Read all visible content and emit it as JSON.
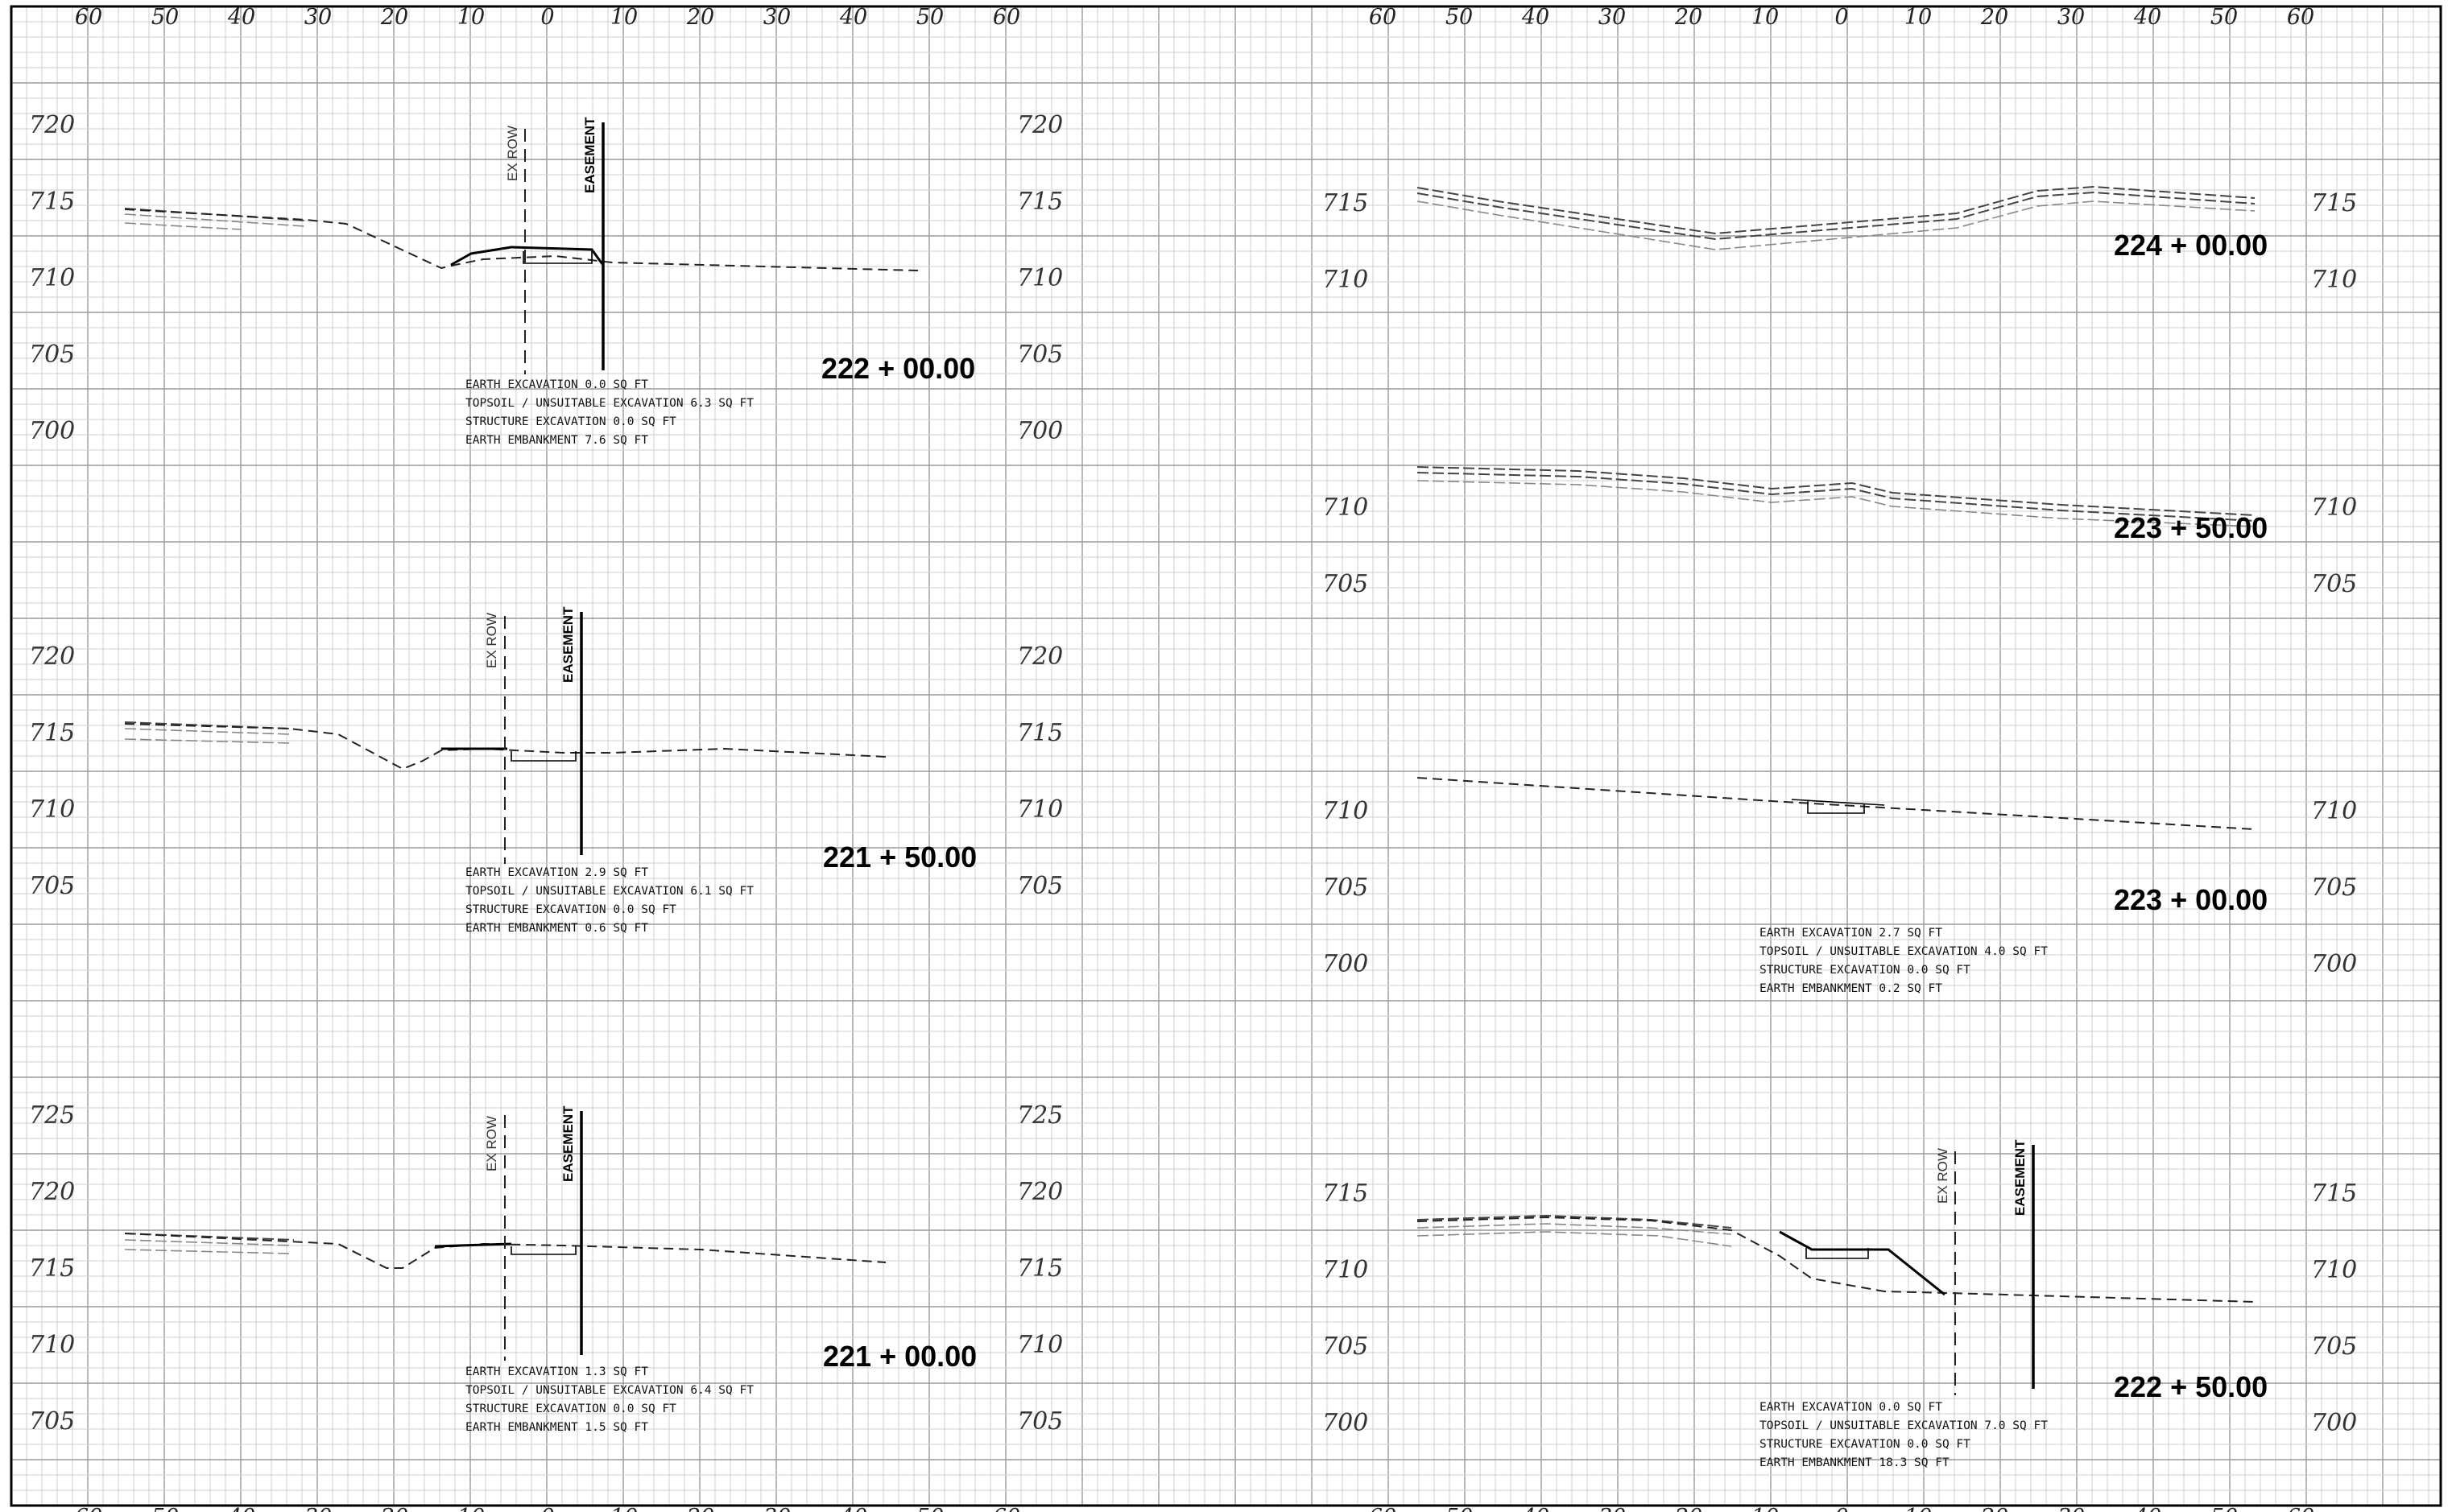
{
  "offset_scale": {
    "left_labels": [
      "60",
      "50",
      "40",
      "30",
      "20",
      "10",
      "0",
      "10",
      "20",
      "30",
      "40",
      "50",
      "60"
    ],
    "right_labels": [
      "60",
      "50",
      "40",
      "30",
      "20",
      "10",
      "0",
      "10",
      "20",
      "30",
      "40",
      "50",
      "60"
    ]
  },
  "vertical_labels": {
    "ex_row": "EX ROW",
    "easement": "EASEMENT"
  },
  "sections": [
    {
      "id": "s222-00",
      "station": "222 + 00.00",
      "elev_left": [
        "720",
        "715",
        "710",
        "705",
        "700"
      ],
      "elev_right": [
        "720",
        "715",
        "710",
        "705",
        "700"
      ],
      "quantities": [
        "EARTH EXCAVATION 0.0 SQ FT",
        "TOPSOIL / UNSUITABLE EXCAVATION 6.3 SQ FT",
        "STRUCTURE EXCAVATION 0.0 SQ FT",
        "EARTH EMBANKMENT 7.6 SQ FT"
      ]
    },
    {
      "id": "s221-50",
      "station": "221 + 50.00",
      "elev_left": [
        "720",
        "715",
        "710",
        "705"
      ],
      "elev_right": [
        "720",
        "715",
        "710",
        "705"
      ],
      "quantities": [
        "EARTH EXCAVATION 2.9 SQ FT",
        "TOPSOIL / UNSUITABLE EXCAVATION 6.1 SQ FT",
        "STRUCTURE EXCAVATION 0.0 SQ FT",
        "EARTH EMBANKMENT 0.6 SQ FT"
      ]
    },
    {
      "id": "s221-00",
      "station": "221 + 00.00",
      "elev_left": [
        "725",
        "720",
        "715",
        "710",
        "705"
      ],
      "elev_right": [
        "725",
        "720",
        "715",
        "710",
        "705"
      ],
      "quantities": [
        "EARTH EXCAVATION 1.3 SQ FT",
        "TOPSOIL / UNSUITABLE EXCAVATION 6.4 SQ FT",
        "STRUCTURE EXCAVATION 0.0 SQ FT",
        "EARTH EMBANKMENT 1.5 SQ FT"
      ]
    },
    {
      "id": "s224-00",
      "station": "224 + 00.00",
      "elev_left": [
        "715",
        "710"
      ],
      "elev_right": [
        "715",
        "710"
      ],
      "quantities": []
    },
    {
      "id": "s223-50",
      "station": "223 + 50.00",
      "elev_left": [
        "710",
        "705"
      ],
      "elev_right": [
        "710",
        "705"
      ],
      "quantities": []
    },
    {
      "id": "s223-00",
      "station": "223 + 00.00",
      "elev_left": [
        "710",
        "705",
        "700"
      ],
      "elev_right": [
        "710",
        "705",
        "700"
      ],
      "quantities": [
        "EARTH EXCAVATION 2.7 SQ FT",
        "TOPSOIL / UNSUITABLE EXCAVATION 4.0 SQ FT",
        "STRUCTURE EXCAVATION 0.0 SQ FT",
        "EARTH EMBANKMENT 0.2 SQ FT"
      ]
    },
    {
      "id": "s222-50",
      "station": "222 + 50.00",
      "elev_left": [
        "715",
        "710",
        "705",
        "700"
      ],
      "elev_right": [
        "715",
        "710",
        "705",
        "700"
      ],
      "quantities": [
        "EARTH EXCAVATION 0.0 SQ FT",
        "TOPSOIL / UNSUITABLE EXCAVATION 7.0 SQ FT",
        "STRUCTURE EXCAVATION 0.0 SQ FT",
        "EARTH EMBANKMENT 18.3 SQ FT"
      ]
    }
  ]
}
